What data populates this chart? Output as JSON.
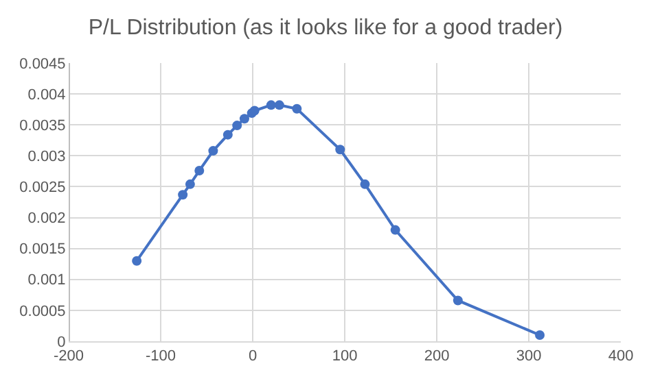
{
  "chart_data": {
    "type": "line",
    "title": "P/L Distribution (as it looks like for a good trader)",
    "x": [
      -126,
      -76,
      -68,
      -58,
      -43,
      -27,
      -17,
      -9,
      -1,
      2,
      20,
      29,
      48,
      95,
      122,
      155,
      223,
      312
    ],
    "series": [
      {
        "color": "#4472c4",
        "values": [
          0.0013,
          0.00237,
          0.00254,
          0.00276,
          0.00308,
          0.00334,
          0.00349,
          0.0036,
          0.00369,
          0.00373,
          0.00382,
          0.00382,
          0.00376,
          0.0031,
          0.00254,
          0.0018,
          0.00066,
          0.0001
        ]
      }
    ],
    "xlim": [
      -200,
      400
    ],
    "xticks": [
      -200,
      -100,
      0,
      100,
      200,
      300,
      400
    ],
    "ylim": [
      0,
      0.0045
    ],
    "yticks": [
      0,
      0.0005,
      0.001,
      0.0015,
      0.002,
      0.0025,
      0.003,
      0.0035,
      0.004,
      0.0045
    ],
    "grid": true,
    "marker": "circle",
    "line_style": "solid"
  }
}
